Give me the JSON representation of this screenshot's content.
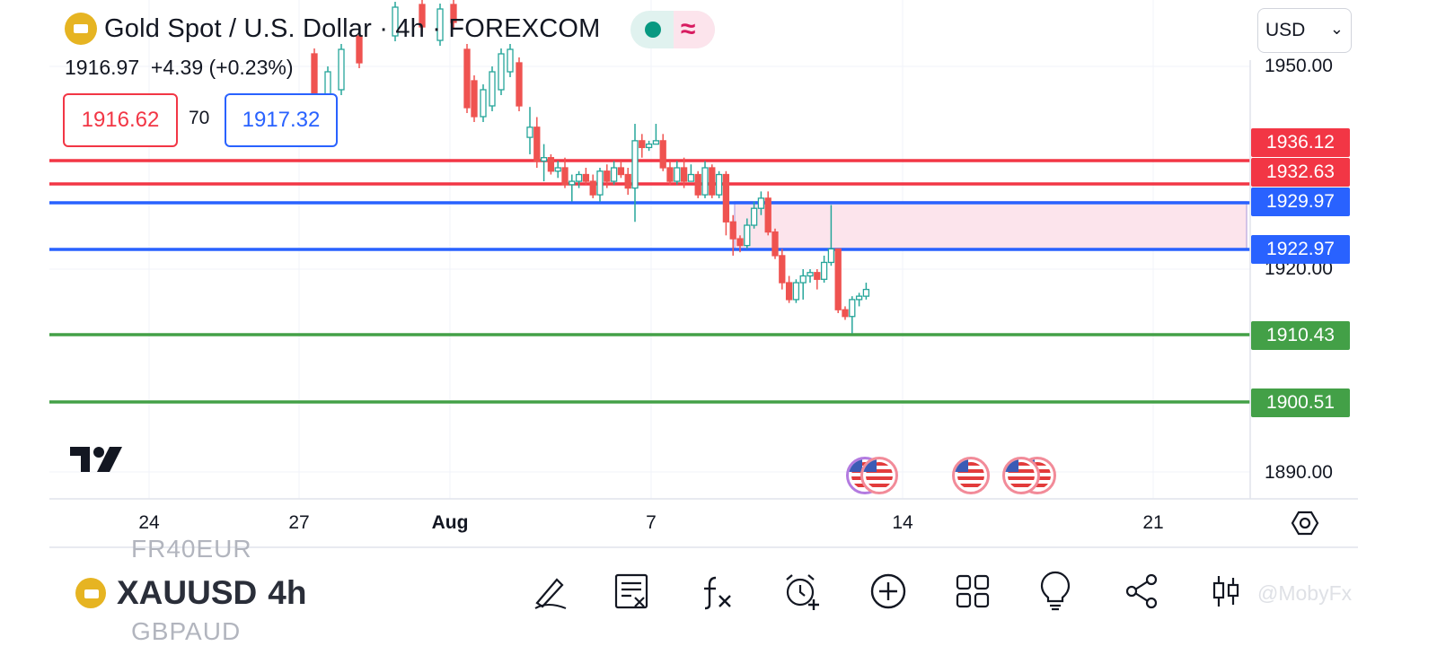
{
  "header": {
    "title": "Gold Spot / U.S. Dollar · 4h · FOREXCOM",
    "last_price": "1916.97",
    "change": "+4.39",
    "change_pct": "(+0.23%)",
    "market_status_icon": "market-open-dot-icon",
    "data_icon": "delayed-data-wave-icon"
  },
  "trade": {
    "sell_price": "1916.62",
    "spread": "70",
    "buy_price": "1917.32"
  },
  "currency_select": {
    "value": "USD",
    "chevron": "⌄"
  },
  "price_axis": {
    "ticks": [
      "1950.00",
      "1920.00",
      "1890.00"
    ],
    "ticks_values": [
      1950,
      1920,
      1890
    ]
  },
  "levels": [
    {
      "price": "1936.12",
      "color": "#f23645",
      "kind": "red"
    },
    {
      "price": "1932.63",
      "color": "#f23645",
      "kind": "red"
    },
    {
      "price": "1929.97",
      "color": "#2962ff",
      "kind": "blue"
    },
    {
      "price": "1922.97",
      "color": "#2962ff",
      "kind": "blue"
    },
    {
      "price": "1910.43",
      "color": "#43a047",
      "kind": "green"
    },
    {
      "price": "1900.51",
      "color": "#43a047",
      "kind": "green"
    }
  ],
  "time_axis": {
    "labels": [
      "24",
      "27",
      "Aug",
      "7",
      "14",
      "21"
    ]
  },
  "chart_data": {
    "type": "candlestick",
    "symbol": "XAUUSD",
    "interval": "4h",
    "x_labels": [
      "24",
      "27",
      "Aug",
      "7",
      "14",
      "21"
    ],
    "y_ticks": [
      1890,
      1920,
      1950
    ],
    "levels": [
      1936.12,
      1932.63,
      1929.97,
      1922.97,
      1910.43,
      1900.51
    ],
    "zone": {
      "from": 1922.97,
      "to": 1929.97,
      "color": "#fce4ec"
    },
    "candles": [
      [
        1939.5,
        1944,
        1937,
        1941
      ],
      [
        1941,
        1942.5,
        1935,
        1936
      ],
      [
        1936,
        1938.5,
        1933,
        1936.5
      ],
      [
        1936.5,
        1937,
        1934,
        1934.5
      ],
      [
        1934.5,
        1936,
        1933.5,
        1935
      ],
      [
        1935,
        1936.5,
        1932,
        1932.5
      ],
      [
        1932.5,
        1934,
        1930,
        1933
      ],
      [
        1933,
        1934.5,
        1932,
        1934
      ],
      [
        1934,
        1935,
        1932.5,
        1933
      ],
      [
        1933,
        1934,
        1930.5,
        1931
      ],
      [
        1931,
        1935,
        1930,
        1934.5
      ],
      [
        1934.5,
        1935.5,
        1932,
        1933
      ],
      [
        1933,
        1936,
        1932.5,
        1935
      ],
      [
        1935,
        1936,
        1933.5,
        1934
      ],
      [
        1934,
        1935,
        1931,
        1932
      ],
      [
        1932,
        1941.5,
        1927,
        1939
      ],
      [
        1939,
        1940,
        1936.5,
        1938
      ],
      [
        1938,
        1939,
        1937.5,
        1938.5
      ],
      [
        1938.5,
        1941.5,
        1938.5,
        1939
      ],
      [
        1939,
        1940,
        1934.5,
        1935
      ],
      [
        1935,
        1936,
        1932.5,
        1933
      ],
      [
        1933,
        1936,
        1932.5,
        1935
      ],
      [
        1935,
        1936.5,
        1932,
        1933
      ],
      [
        1933,
        1935.5,
        1933,
        1934
      ],
      [
        1934,
        1934.5,
        1930.5,
        1931
      ],
      [
        1931,
        1936,
        1930.5,
        1935
      ],
      [
        1935,
        1935.5,
        1930.5,
        1931
      ],
      [
        1931,
        1934.5,
        1930.5,
        1934
      ],
      [
        1934,
        1934.5,
        1925,
        1927
      ],
      [
        1927,
        1928,
        1922,
        1924.5
      ],
      [
        1924.5,
        1925,
        1922.5,
        1923.5
      ],
      [
        1923.5,
        1927.5,
        1923,
        1926.5
      ],
      [
        1926.5,
        1930,
        1926,
        1929
      ],
      [
        1929,
        1931.5,
        1928,
        1930.5
      ],
      [
        1930.5,
        1931.5,
        1925,
        1925.5
      ],
      [
        1925.5,
        1926,
        1921.5,
        1922
      ],
      [
        1922,
        1923,
        1917,
        1918
      ],
      [
        1918,
        1919,
        1915,
        1915.5
      ],
      [
        1915.5,
        1918.5,
        1915,
        1918
      ],
      [
        1918,
        1920,
        1915.5,
        1919
      ],
      [
        1919,
        1920,
        1918,
        1919.5
      ],
      [
        1919.5,
        1920,
        1917,
        1918.5
      ],
      [
        1918.5,
        1922,
        1918,
        1921
      ],
      [
        1921,
        1929.5,
        1920.5,
        1923
      ],
      [
        1923,
        1923,
        1913.5,
        1914
      ],
      [
        1914,
        1914.5,
        1912.5,
        1913
      ],
      [
        1913,
        1916,
        1910.5,
        1915.5
      ],
      [
        1915.5,
        1916.5,
        1914.5,
        1916
      ],
      [
        1916,
        1918,
        1915.5,
        1917
      ]
    ]
  },
  "events_row": {
    "flag_icon": "us-flag-event-icon",
    "count": 5
  },
  "bottom_bar": {
    "prev_symbol": "FR40EUR",
    "symbol": "XAUUSD",
    "interval": "4h",
    "next_symbol": "GBPAUD",
    "tools": [
      {
        "name": "drawing-tool-icon"
      },
      {
        "name": "ideas-note-icon"
      },
      {
        "name": "indicators-fx-icon"
      },
      {
        "name": "alert-clock-icon"
      },
      {
        "name": "add-plus-icon"
      },
      {
        "name": "layouts-grid-icon"
      },
      {
        "name": "ideas-bulb-icon"
      },
      {
        "name": "share-icon"
      },
      {
        "name": "chart-type-candles-icon"
      }
    ]
  },
  "watermark": "@MobyFx"
}
